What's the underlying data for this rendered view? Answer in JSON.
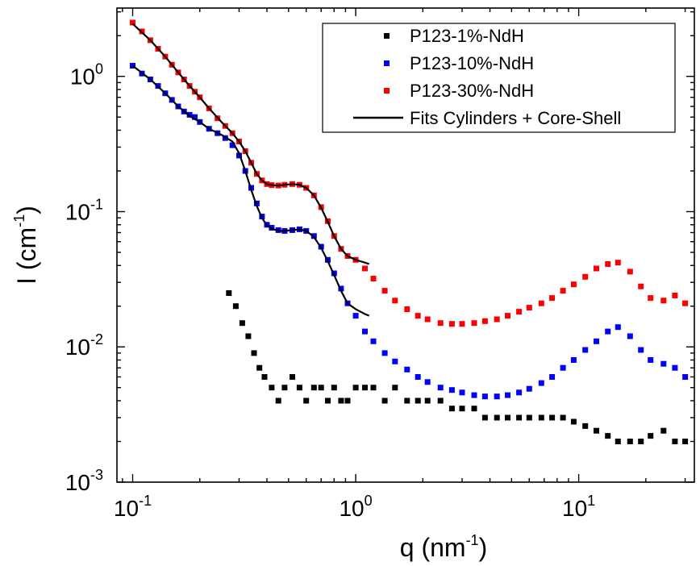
{
  "chart_data": {
    "type": "scatter",
    "x_scale": "log",
    "y_scale": "log",
    "xlim": [
      0.085,
      33
    ],
    "ylim": [
      0.001,
      3.2
    ],
    "x_ticks": [
      {
        "base": "10",
        "exp": "-1"
      },
      {
        "base": "10",
        "exp": "0"
      },
      {
        "base": "10",
        "exp": "1"
      }
    ],
    "y_ticks": [
      {
        "base": "10",
        "exp": "-3"
      },
      {
        "base": "10",
        "exp": "-2"
      },
      {
        "base": "10",
        "exp": "-1"
      },
      {
        "base": "10",
        "exp": "0"
      }
    ],
    "xlabel": {
      "main": "q (nm",
      "sup": "-1",
      "end": ")"
    },
    "ylabel": {
      "main": "I (cm",
      "sup": "-1",
      "end": ")"
    },
    "grid": false,
    "legend_position": "top-right",
    "series": [
      {
        "name": "P123-1%-NdH",
        "color": "#000000",
        "marker": "square",
        "x": [
          0.27,
          0.29,
          0.31,
          0.33,
          0.35,
          0.37,
          0.39,
          0.42,
          0.45,
          0.48,
          0.52,
          0.56,
          0.6,
          0.65,
          0.7,
          0.75,
          0.8,
          0.86,
          0.92,
          1.0,
          1.1,
          1.2,
          1.35,
          1.5,
          1.7,
          1.9,
          2.1,
          2.4,
          2.7,
          3.0,
          3.4,
          3.8,
          4.3,
          4.8,
          5.4,
          6.0,
          6.8,
          7.6,
          8.5,
          9.5,
          10.7,
          12.0,
          13.5,
          15.0,
          17.0,
          19.0,
          21.0,
          24.0,
          27.0,
          30.0
        ],
        "y": [
          0.025,
          0.02,
          0.015,
          0.012,
          0.009,
          0.007,
          0.006,
          0.005,
          0.004,
          0.005,
          0.006,
          0.005,
          0.004,
          0.005,
          0.005,
          0.004,
          0.005,
          0.004,
          0.004,
          0.005,
          0.005,
          0.005,
          0.004,
          0.005,
          0.004,
          0.004,
          0.004,
          0.004,
          0.0035,
          0.0035,
          0.0035,
          0.003,
          0.003,
          0.003,
          0.003,
          0.003,
          0.003,
          0.003,
          0.003,
          0.0028,
          0.0026,
          0.0024,
          0.0022,
          0.002,
          0.002,
          0.002,
          0.0022,
          0.0024,
          0.002,
          0.002
        ]
      },
      {
        "name": "P123-10%-NdH",
        "color": "#0000ff",
        "marker": "square",
        "x": [
          0.1,
          0.11,
          0.12,
          0.13,
          0.14,
          0.15,
          0.16,
          0.17,
          0.18,
          0.19,
          0.2,
          0.22,
          0.24,
          0.26,
          0.28,
          0.3,
          0.32,
          0.34,
          0.36,
          0.38,
          0.4,
          0.42,
          0.45,
          0.48,
          0.52,
          0.56,
          0.6,
          0.65,
          0.7,
          0.75,
          0.8,
          0.86,
          0.92,
          1.0,
          1.1,
          1.2,
          1.35,
          1.5,
          1.7,
          1.9,
          2.1,
          2.4,
          2.7,
          3.0,
          3.4,
          3.8,
          4.3,
          4.8,
          5.4,
          6.0,
          6.8,
          7.6,
          8.5,
          9.5,
          10.7,
          12.0,
          13.5,
          15.0,
          17.0,
          19.0,
          21.0,
          24.0,
          27.0,
          30.0
        ],
        "y": [
          1.2,
          1.05,
          0.95,
          0.85,
          0.75,
          0.67,
          0.6,
          0.55,
          0.52,
          0.5,
          0.46,
          0.41,
          0.38,
          0.35,
          0.31,
          0.26,
          0.2,
          0.15,
          0.115,
          0.092,
          0.08,
          0.076,
          0.073,
          0.072,
          0.073,
          0.074,
          0.072,
          0.066,
          0.055,
          0.044,
          0.035,
          0.027,
          0.021,
          0.017,
          0.013,
          0.011,
          0.009,
          0.0078,
          0.0068,
          0.006,
          0.0055,
          0.005,
          0.0048,
          0.0046,
          0.0044,
          0.0043,
          0.0043,
          0.0044,
          0.0046,
          0.0049,
          0.0054,
          0.006,
          0.007,
          0.008,
          0.0095,
          0.011,
          0.013,
          0.014,
          0.012,
          0.0095,
          0.008,
          0.0075,
          0.007,
          0.006
        ]
      },
      {
        "name": "P123-30%-NdH",
        "color": "#ff0000",
        "marker": "square",
        "x": [
          0.1,
          0.11,
          0.12,
          0.13,
          0.14,
          0.15,
          0.16,
          0.17,
          0.18,
          0.19,
          0.2,
          0.22,
          0.24,
          0.26,
          0.28,
          0.3,
          0.32,
          0.34,
          0.36,
          0.38,
          0.4,
          0.42,
          0.45,
          0.48,
          0.52,
          0.56,
          0.6,
          0.65,
          0.7,
          0.75,
          0.8,
          0.86,
          0.92,
          1.0,
          1.1,
          1.2,
          1.35,
          1.5,
          1.7,
          1.9,
          2.1,
          2.4,
          2.7,
          3.0,
          3.4,
          3.8,
          4.3,
          4.8,
          5.4,
          6.0,
          6.8,
          7.6,
          8.5,
          9.5,
          10.7,
          12.0,
          13.5,
          15.0,
          17.0,
          19.0,
          21.0,
          24.0,
          27.0,
          30.0
        ],
        "y": [
          2.5,
          2.15,
          1.85,
          1.6,
          1.4,
          1.22,
          1.07,
          0.95,
          0.85,
          0.77,
          0.7,
          0.58,
          0.49,
          0.43,
          0.38,
          0.33,
          0.28,
          0.23,
          0.19,
          0.17,
          0.16,
          0.157,
          0.156,
          0.158,
          0.16,
          0.158,
          0.15,
          0.132,
          0.108,
          0.085,
          0.066,
          0.053,
          0.047,
          0.044,
          0.038,
          0.032,
          0.026,
          0.022,
          0.019,
          0.017,
          0.016,
          0.015,
          0.0148,
          0.0148,
          0.015,
          0.0155,
          0.016,
          0.017,
          0.0182,
          0.0195,
          0.021,
          0.023,
          0.026,
          0.029,
          0.033,
          0.038,
          0.041,
          0.042,
          0.036,
          0.028,
          0.023,
          0.022,
          0.024,
          0.021
        ]
      },
      {
        "name": "Fits Cylinders + Core-Shell",
        "color": "#000000",
        "type": "line",
        "curves": [
          {
            "x": [
              0.1,
              0.12,
              0.14,
              0.16,
              0.18,
              0.2,
              0.22,
              0.25,
              0.28,
              0.3,
              0.32,
              0.34,
              0.36,
              0.38,
              0.4,
              0.42,
              0.45,
              0.48,
              0.52,
              0.56,
              0.6,
              0.65,
              0.7,
              0.75,
              0.8,
              0.86,
              0.92,
              1.0,
              1.1,
              1.15
            ],
            "y": [
              1.2,
              0.95,
              0.75,
              0.6,
              0.51,
              0.46,
              0.41,
              0.37,
              0.33,
              0.27,
              0.2,
              0.145,
              0.11,
              0.09,
              0.079,
              0.075,
              0.072,
              0.072,
              0.073,
              0.074,
              0.072,
              0.065,
              0.054,
              0.043,
              0.034,
              0.026,
              0.021,
              0.019,
              0.0175,
              0.017
            ]
          },
          {
            "x": [
              0.1,
              0.12,
              0.14,
              0.16,
              0.18,
              0.2,
              0.22,
              0.25,
              0.28,
              0.3,
              0.32,
              0.34,
              0.36,
              0.38,
              0.4,
              0.42,
              0.45,
              0.48,
              0.52,
              0.56,
              0.6,
              0.65,
              0.7,
              0.75,
              0.8,
              0.86,
              0.92,
              1.0,
              1.1,
              1.15
            ],
            "y": [
              2.45,
              1.85,
              1.4,
              1.07,
              0.85,
              0.7,
              0.58,
              0.46,
              0.38,
              0.33,
              0.28,
              0.23,
              0.19,
              0.17,
              0.16,
              0.157,
              0.156,
              0.158,
              0.16,
              0.158,
              0.15,
              0.132,
              0.107,
              0.084,
              0.066,
              0.053,
              0.047,
              0.044,
              0.042,
              0.041
            ]
          }
        ]
      }
    ]
  }
}
